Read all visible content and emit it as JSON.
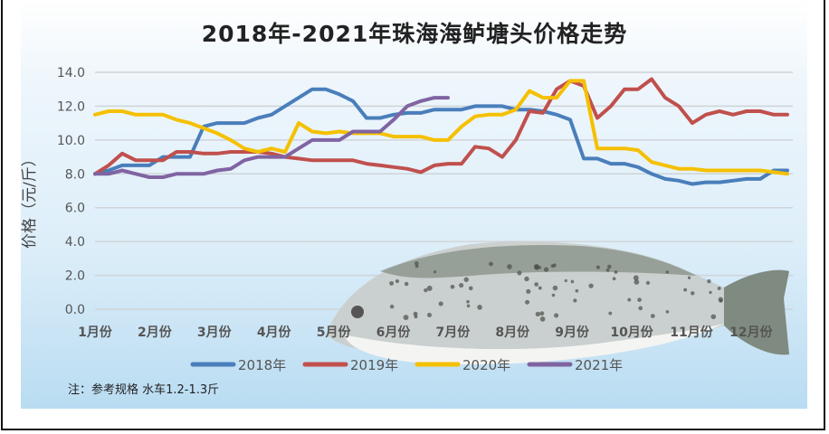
{
  "title": "2018年-2021年珠海海鲈塘头价格走势",
  "note": "注：参考规格  水车1.2-1.3斤",
  "chart_data": {
    "type": "line",
    "title": "2018年-2021年珠海海鲈塘头价格走势",
    "xlabel": "",
    "ylabel": "价格（元/斤）",
    "ylim": [
      0,
      14
    ],
    "yticks": [
      "0.0",
      "2.0",
      "4.0",
      "6.0",
      "8.0",
      "10.0",
      "12.0",
      "14.0"
    ],
    "xtick_labels": [
      "1月份",
      "2月份",
      "3月份",
      "4月份",
      "5月份",
      "6月份",
      "7月份",
      "8月份",
      "9月份",
      "10月份",
      "11月份",
      "12月份"
    ],
    "grid": true,
    "legend_placement": "bottom",
    "series": [
      {
        "name": "2018年",
        "color": "#4a7ebb",
        "values": [
          8.0,
          8.2,
          8.5,
          8.5,
          8.5,
          9.0,
          9.0,
          9.0,
          10.8,
          11.0,
          11.0,
          11.0,
          11.3,
          11.5,
          12.0,
          12.5,
          13.0,
          13.0,
          12.7,
          12.3,
          11.3,
          11.3,
          11.5,
          11.6,
          11.6,
          11.8,
          11.8,
          11.8,
          12.0,
          12.0,
          12.0,
          11.8,
          11.8,
          11.7,
          11.5,
          11.2,
          8.9,
          8.9,
          8.6,
          8.6,
          8.4,
          8.0,
          7.7,
          7.6,
          7.4,
          7.5,
          7.5,
          7.6,
          7.7,
          7.7,
          8.2,
          8.2
        ]
      },
      {
        "name": "2019年",
        "color": "#c0504d",
        "values": [
          8.0,
          8.5,
          9.2,
          8.8,
          8.8,
          8.8,
          9.3,
          9.3,
          9.2,
          9.2,
          9.3,
          9.3,
          9.3,
          9.2,
          9.0,
          8.9,
          8.8,
          8.8,
          8.8,
          8.8,
          8.6,
          8.5,
          8.4,
          8.3,
          8.1,
          8.5,
          8.6,
          8.6,
          9.6,
          9.5,
          9.0,
          10.0,
          11.7,
          11.6,
          13.0,
          13.5,
          13.2,
          11.3,
          12.0,
          13.0,
          13.0,
          13.6,
          12.5,
          12.0,
          11.0,
          11.5,
          11.7,
          11.5,
          11.7,
          11.7,
          11.5,
          11.5
        ]
      },
      {
        "name": "2020年",
        "color": "#f5c000",
        "values": [
          11.5,
          11.7,
          11.7,
          11.5,
          11.5,
          11.5,
          11.2,
          11.0,
          10.7,
          10.4,
          10.0,
          9.5,
          9.3,
          9.5,
          9.3,
          11.0,
          10.5,
          10.4,
          10.5,
          10.4,
          10.4,
          10.4,
          10.2,
          10.2,
          10.2,
          10.0,
          10.0,
          10.8,
          11.4,
          11.5,
          11.5,
          11.8,
          12.9,
          12.5,
          12.5,
          13.5,
          13.5,
          9.5,
          9.5,
          9.5,
          9.4,
          8.7,
          8.5,
          8.3,
          8.3,
          8.2,
          8.2,
          8.2,
          8.2,
          8.2,
          8.1,
          8.0
        ]
      },
      {
        "name": "2021年",
        "color": "#8064a2",
        "values": [
          8.0,
          8.0,
          8.2,
          8.0,
          7.8,
          7.8,
          8.0,
          8.0,
          8.0,
          8.2,
          8.3,
          8.8,
          9.0,
          9.0,
          9.0,
          9.5,
          10.0,
          10.0,
          10.0,
          10.5,
          10.5,
          10.5,
          11.2,
          12.0,
          12.3,
          12.5,
          12.5
        ]
      }
    ]
  }
}
